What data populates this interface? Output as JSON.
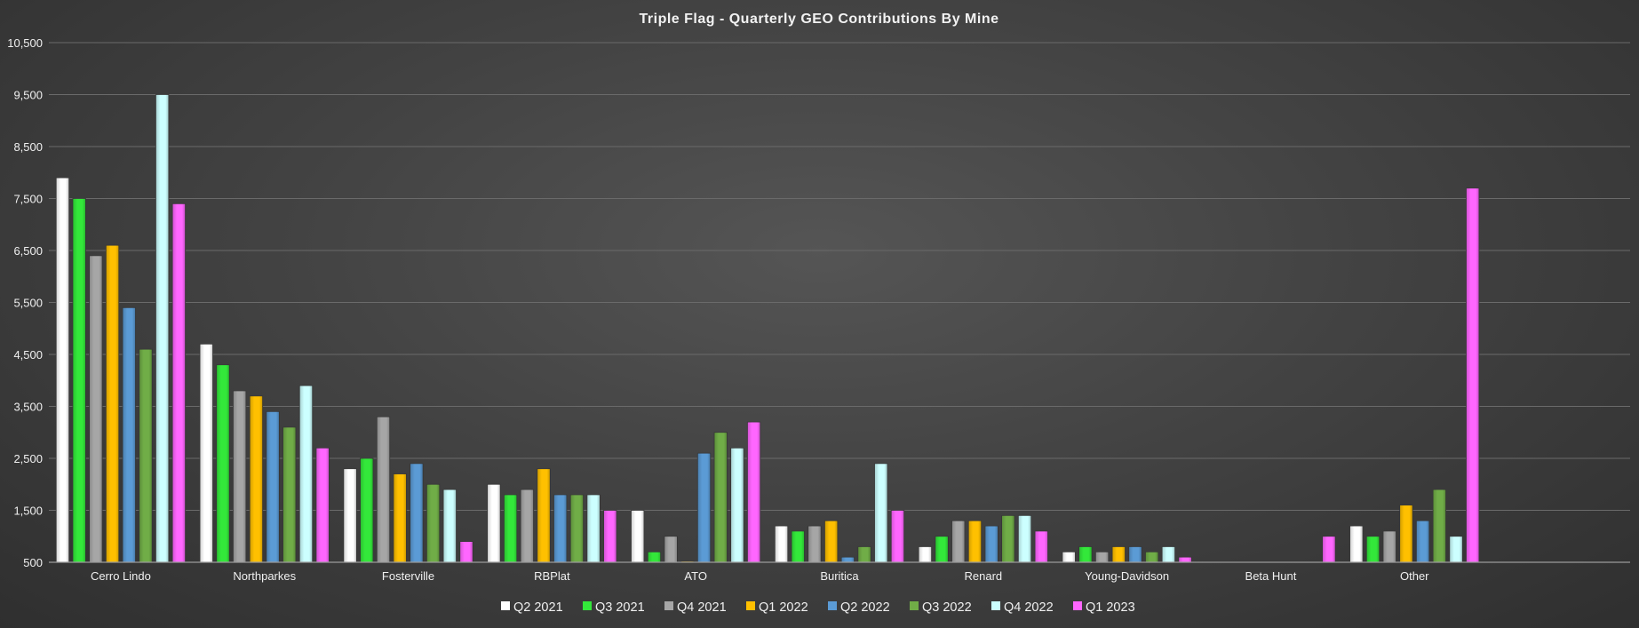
{
  "chart_data": {
    "type": "bar",
    "title": "Triple Flag - Quarterly GEO Contributions By Mine",
    "xlabel": "",
    "ylabel": "",
    "ylim": [
      500,
      10500
    ],
    "yticks": [
      500,
      1500,
      2500,
      3500,
      4500,
      5500,
      6500,
      7500,
      8500,
      9500,
      10500
    ],
    "ytick_labels": [
      "500",
      "1,500",
      "2,500",
      "3,500",
      "4,500",
      "5,500",
      "6,500",
      "7,500",
      "8,500",
      "9,500",
      "10,500"
    ],
    "grid": true,
    "legend_position": "bottom",
    "categories": [
      "Cerro Lindo",
      "Northparkes",
      "Fosterville",
      "RBPlat",
      "ATO",
      "Buritica",
      "Renard",
      "Young-Davidson",
      "Beta Hunt",
      "Other"
    ],
    "series": [
      {
        "name": "Q2 2021",
        "color": "#ffffff",
        "values": [
          7900,
          4700,
          2300,
          2000,
          1500,
          1200,
          800,
          700,
          0,
          1200
        ]
      },
      {
        "name": "Q3 2021",
        "color": "#33e83a",
        "values": [
          7500,
          4300,
          2500,
          1800,
          700,
          1100,
          1000,
          800,
          0,
          1000
        ]
      },
      {
        "name": "Q4 2021",
        "color": "#a6a6a6",
        "values": [
          6400,
          3800,
          3300,
          1900,
          1000,
          1200,
          1300,
          700,
          0,
          1100
        ]
      },
      {
        "name": "Q1 2022",
        "color": "#ffc000",
        "values": [
          6600,
          3700,
          2200,
          2300,
          520,
          1300,
          1300,
          800,
          0,
          1600
        ]
      },
      {
        "name": "Q2 2022",
        "color": "#5b9bd5",
        "values": [
          5400,
          3400,
          2400,
          1800,
          2600,
          600,
          1200,
          800,
          0,
          1300
        ]
      },
      {
        "name": "Q3 2022",
        "color": "#70ad47",
        "values": [
          4600,
          3100,
          2000,
          1800,
          3000,
          800,
          1400,
          700,
          0,
          1900
        ]
      },
      {
        "name": "Q4 2022",
        "color": "#ccffff",
        "values": [
          9500,
          3900,
          1900,
          1800,
          2700,
          2400,
          1400,
          800,
          0,
          1000
        ]
      },
      {
        "name": "Q1 2023",
        "color": "#ff66ff",
        "values": [
          7400,
          2700,
          900,
          1500,
          3200,
          1500,
          1100,
          600,
          1000,
          7700
        ]
      }
    ]
  }
}
